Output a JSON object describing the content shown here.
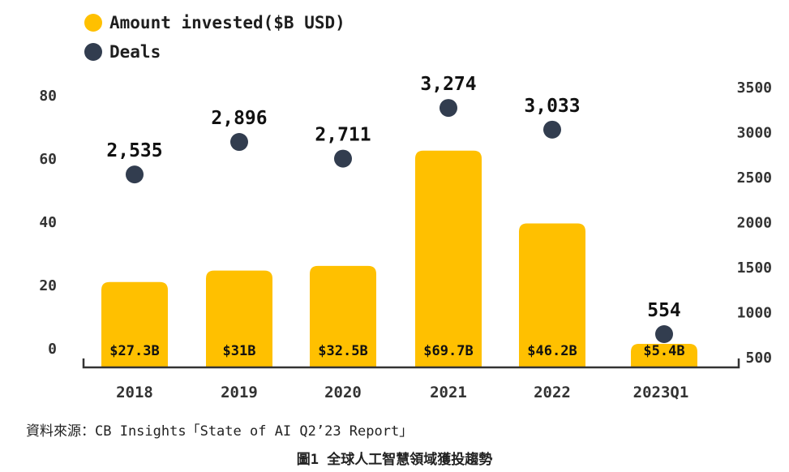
{
  "colors": {
    "bar": "#FFC000",
    "dot": "#323D4F",
    "axis": "#333333"
  },
  "legend": {
    "amount_label": "Amount invested($B USD)",
    "deals_label": "Deals"
  },
  "chart_data": {
    "type": "bar",
    "categories": [
      "2018",
      "2019",
      "2020",
      "2021",
      "2022",
      "2023Q1"
    ],
    "series": [
      {
        "name": "Amount invested($B USD)",
        "type": "bar",
        "axis": "left",
        "values": [
          27.3,
          31,
          32.5,
          69.7,
          46.2,
          5.4
        ],
        "labels": [
          "$27.3B",
          "$31B",
          "$32.5B",
          "$69.7B",
          "$46.2B",
          "$5.4B"
        ]
      },
      {
        "name": "Deals",
        "type": "scatter",
        "axis": "right",
        "values": [
          2535,
          2896,
          2711,
          3274,
          3033,
          554
        ],
        "labels": [
          "2,535",
          "2,896",
          "2,711",
          "3,274",
          "3,033",
          "554"
        ]
      }
    ],
    "left_axis": {
      "ticks": [
        "80",
        "60",
        "40",
        "20",
        "0"
      ]
    },
    "right_axis": {
      "ticks": [
        "3500",
        "3000",
        "2500",
        "2000",
        "1500",
        "1000",
        "500"
      ]
    },
    "legend_position": "top-left",
    "grid": false
  },
  "footer": {
    "source": "資料來源：CB Insights「State of AI Q2’23 Report」",
    "caption": "圖1 全球人工智慧領域獲投趨勢"
  }
}
